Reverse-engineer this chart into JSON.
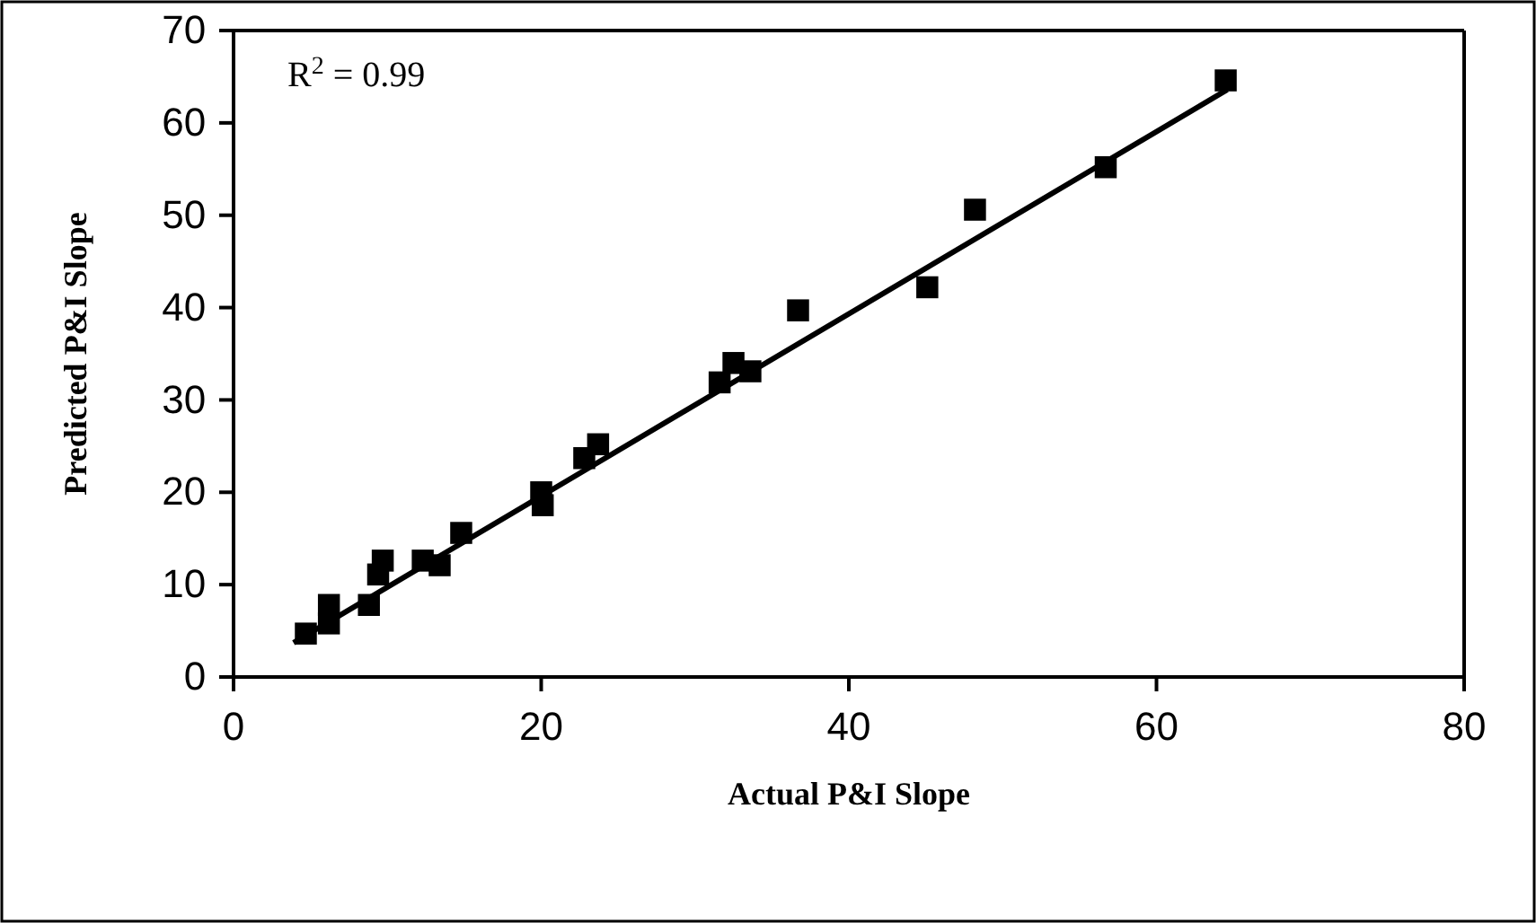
{
  "chart_data": {
    "type": "scatter",
    "xlabel": "Actual P&I Slope",
    "ylabel": "Predicted P&I Slope",
    "annotations": [
      "R$^{2}$ = 0.99"
    ],
    "xlim": [
      0,
      80
    ],
    "ylim": [
      0,
      70
    ],
    "xticks": [
      0,
      20,
      40,
      60,
      80
    ],
    "yticks": [
      0,
      10,
      20,
      30,
      40,
      50,
      60,
      70
    ],
    "grid": false,
    "marker": "square",
    "series": [
      {
        "color": "#000000",
        "x": [
          4.7,
          6.2,
          6.2,
          8.8,
          9.4,
          9.7,
          12.3,
          13.4,
          14.8,
          20.0,
          20.1,
          22.8,
          23.7,
          31.6,
          32.5,
          33.6,
          36.7,
          45.1,
          48.2,
          56.7,
          64.5
        ],
        "values": [
          4.7,
          7.8,
          5.8,
          7.8,
          11.1,
          12.6,
          12.6,
          12.1,
          15.6,
          20.0,
          18.6,
          23.7,
          25.2,
          31.9,
          34.0,
          33.1,
          39.7,
          42.2,
          50.6,
          55.2,
          64.6
        ]
      },
      {
        "type": "line",
        "color": "#000000",
        "marker": "none",
        "line_style": "solid",
        "x": [
          3.9,
          64.6
        ],
        "values": [
          3.7,
          63.6
        ]
      }
    ]
  }
}
